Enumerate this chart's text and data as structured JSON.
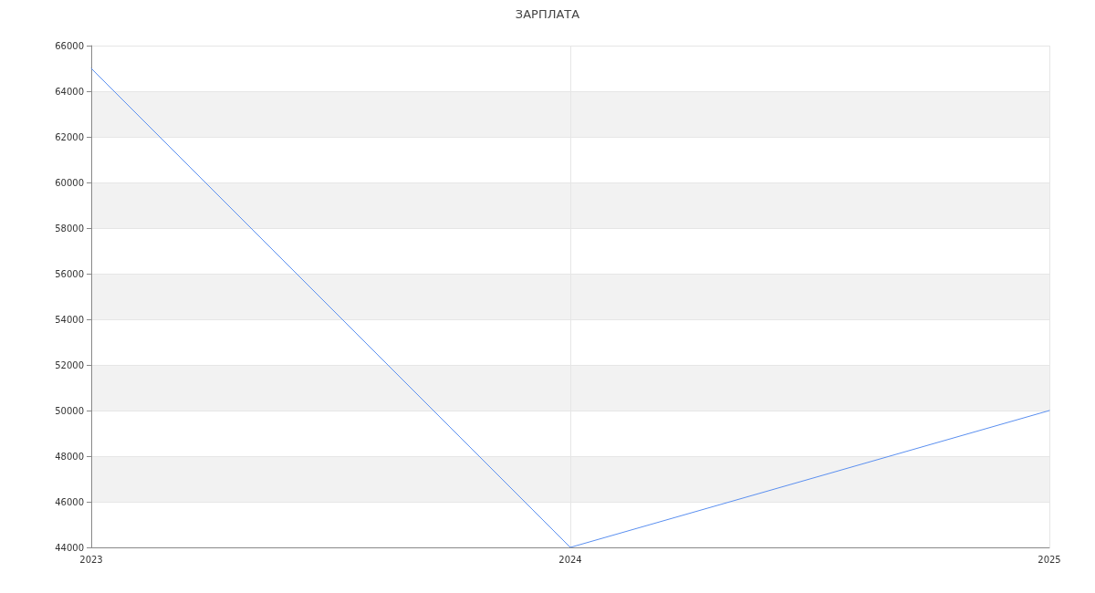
{
  "chart_data": {
    "type": "line",
    "title": "ЗАРПЛАТА",
    "categories": [
      "2023",
      "2024",
      "2025"
    ],
    "series": [
      {
        "color": "#5a8ff0",
        "values": [
          65000,
          44000,
          50000
        ]
      }
    ],
    "ylim": [
      44000,
      66000
    ],
    "yticks": [
      44000,
      46000,
      48000,
      50000,
      52000,
      54000,
      56000,
      58000,
      60000,
      62000,
      64000,
      66000
    ],
    "grid": true,
    "marker": "none",
    "line_style": "solid"
  }
}
